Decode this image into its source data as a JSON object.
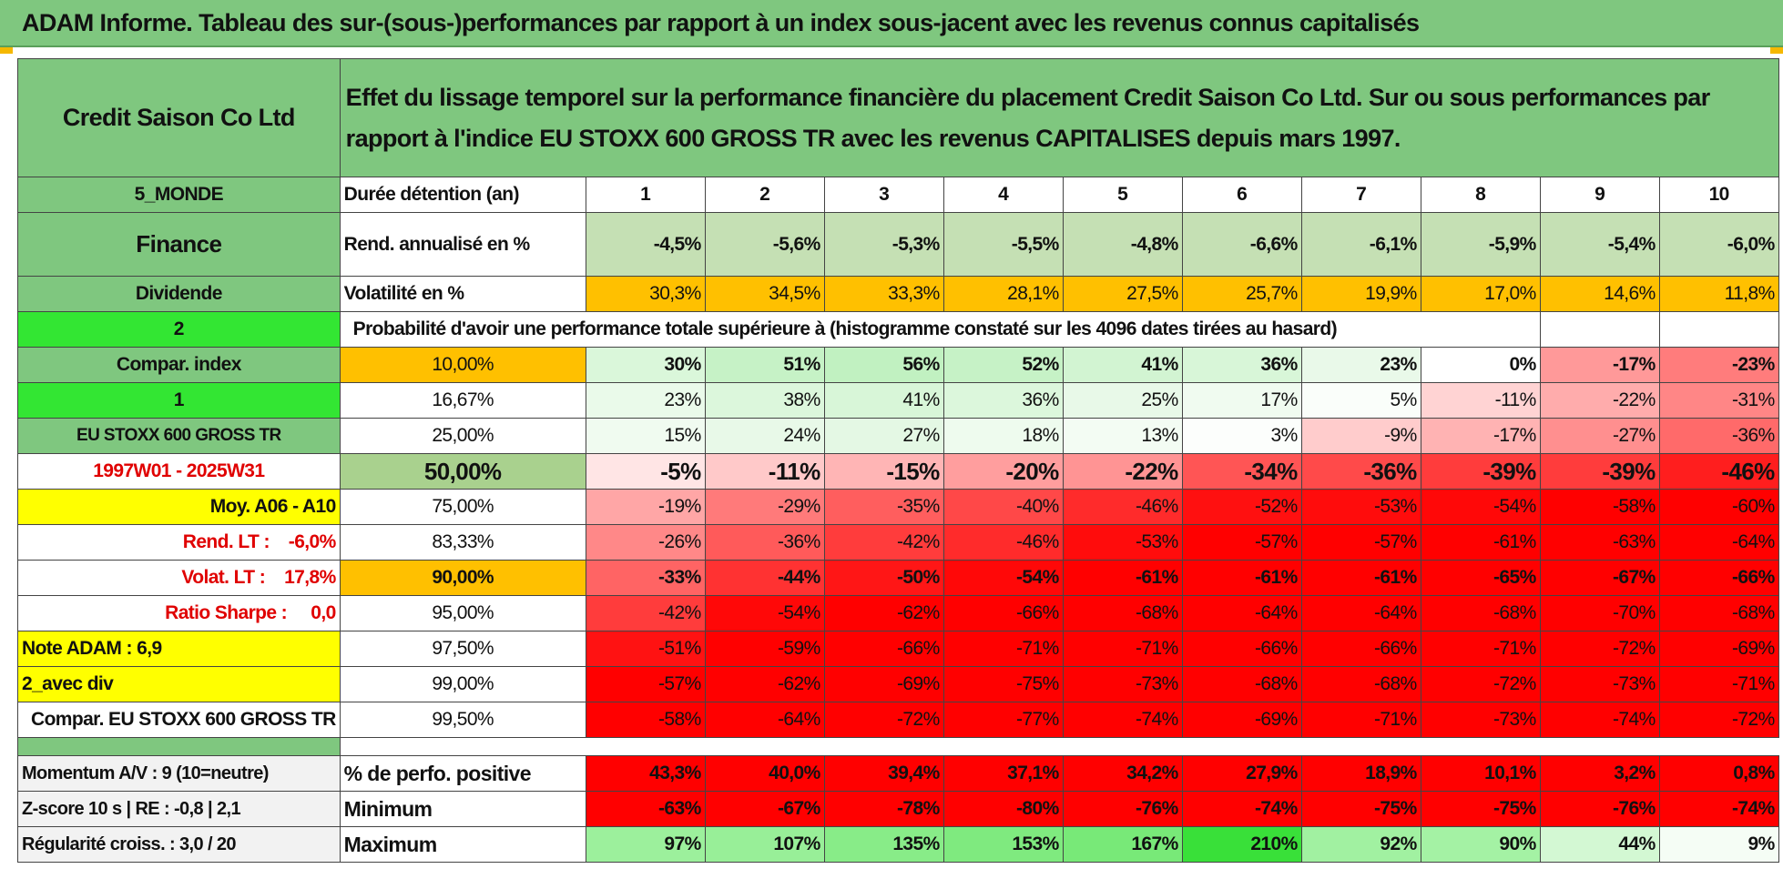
{
  "title": "ADAM Informe. Tableau des sur-(sous-)performances par rapport à un index sous-jacent avec les revenus connus capitalisés",
  "header": {
    "company": "Credit Saison Co Ltd",
    "description": "Effet du lissage temporel sur la performance financière du placement Credit Saison Co Ltd. Sur ou sous performances par rapport à l'indice EU STOXX 600 GROSS TR avec les revenus CAPITALISES depuis mars 1997."
  },
  "left": {
    "region": "5_MONDE",
    "sector": "Finance",
    "type": "Dividende",
    "code2": "2",
    "compar_label": "Compar. index",
    "code1": "1",
    "index_name": "EU STOXX 600 GROSS TR",
    "period": "1997W01 - 2025W31",
    "moy": "Moy. A06 - A10",
    "rend_lt": "Rend. LT :    -6,0%",
    "volat_lt": "Volat. LT :    17,8%",
    "sharpe": "Ratio Sharpe :     0,0",
    "note": "Note ADAM : 6,9",
    "avec_div": "2_avec div",
    "compar_full": "Compar. EU STOXX 600 GROSS TR"
  },
  "row_labels": {
    "duration": "Durée détention (an)",
    "rend": "Rend. annualisé en %",
    "volat": "Volatilité en %",
    "prob": "Probabilité d'avoir une performance totale supérieure à (histogramme constaté sur les 4096 dates tirées au hasard)"
  },
  "years": [
    "1",
    "2",
    "3",
    "4",
    "5",
    "6",
    "7",
    "8",
    "9",
    "10"
  ],
  "rend": [
    "-4,5%",
    "-5,6%",
    "-5,3%",
    "-5,5%",
    "-4,8%",
    "-6,6%",
    "-6,1%",
    "-5,9%",
    "-5,4%",
    "-6,0%"
  ],
  "volat": [
    "30,3%",
    "34,5%",
    "33,3%",
    "28,1%",
    "27,5%",
    "25,7%",
    "19,9%",
    "17,0%",
    "14,6%",
    "11,8%"
  ],
  "percentile_rows": [
    {
      "p": "10,00%",
      "values": [
        "30%",
        "51%",
        "56%",
        "52%",
        "41%",
        "36%",
        "23%",
        "0%",
        "-17%",
        "-23%"
      ],
      "colors": [
        "#daf7da",
        "#c6f2c6",
        "#c1f1c1",
        "#c6f2c6",
        "#d2f4d2",
        "#d8f6d8",
        "#e9f9e9",
        "#ffffff",
        "#ff9999",
        "#ff7c7c"
      ]
    },
    {
      "p": "16,67%",
      "values": [
        "23%",
        "38%",
        "41%",
        "36%",
        "25%",
        "17%",
        "5%",
        "-11%",
        "-22%",
        "-31%"
      ],
      "colors": [
        "#eafaea",
        "#dcf7dc",
        "#d8f6d8",
        "#dcf7dc",
        "#e8f9e8",
        "#f0fbf0",
        "#fafefa",
        "#ffd3d3",
        "#ffacac",
        "#ff8686"
      ]
    },
    {
      "p": "25,00%",
      "values": [
        "15%",
        "24%",
        "27%",
        "18%",
        "13%",
        "3%",
        "-9%",
        "-17%",
        "-27%",
        "-36%"
      ],
      "colors": [
        "#f0fbf0",
        "#e8f9e8",
        "#e4f8e4",
        "#eefbee",
        "#f3fcf3",
        "#fcfefc",
        "#ffcccc",
        "#ffb3b3",
        "#ff8f8f",
        "#ff6a6a"
      ]
    },
    {
      "p": "50,00%",
      "values": [
        "-5%",
        "-11%",
        "-15%",
        "-20%",
        "-22%",
        "-34%",
        "-36%",
        "-39%",
        "-39%",
        "-46%"
      ],
      "colors": [
        "#ffe5e5",
        "#ffc9c9",
        "#ffb5b5",
        "#ff9e9e",
        "#ff9494",
        "#ff5555",
        "#ff4a4a",
        "#ff3c3c",
        "#ff3c3c",
        "#ff1e1e"
      ]
    },
    {
      "p": "75,00%",
      "values": [
        "-19%",
        "-29%",
        "-35%",
        "-40%",
        "-46%",
        "-52%",
        "-53%",
        "-54%",
        "-58%",
        "-60%"
      ],
      "colors": [
        "#ffa6a6",
        "#ff7a7a",
        "#ff5e5e",
        "#ff4848",
        "#ff2b2b",
        "#ff1010",
        "#ff0c0c",
        "#ff0808",
        "#ff0000",
        "#ff0000"
      ]
    },
    {
      "p": "83,33%",
      "values": [
        "-26%",
        "-36%",
        "-42%",
        "-46%",
        "-53%",
        "-57%",
        "-57%",
        "-61%",
        "-63%",
        "-64%"
      ],
      "colors": [
        "#ff8888",
        "#ff5a5a",
        "#ff3c3c",
        "#ff2b2b",
        "#ff0c0c",
        "#ff0000",
        "#ff0000",
        "#ff0000",
        "#ff0000",
        "#ff0000"
      ]
    },
    {
      "p": "90,00%",
      "values": [
        "-33%",
        "-44%",
        "-50%",
        "-54%",
        "-61%",
        "-61%",
        "-61%",
        "-65%",
        "-67%",
        "-66%"
      ],
      "colors": [
        "#ff6464",
        "#ff3232",
        "#ff1616",
        "#ff0808",
        "#ff0000",
        "#ff0000",
        "#ff0000",
        "#ff0000",
        "#ff0000",
        "#ff0000"
      ]
    },
    {
      "p": "95,00%",
      "values": [
        "-42%",
        "-54%",
        "-62%",
        "-66%",
        "-68%",
        "-64%",
        "-64%",
        "-68%",
        "-70%",
        "-68%"
      ],
      "colors": [
        "#ff3c3c",
        "#ff0808",
        "#ff0000",
        "#ff0000",
        "#ff0000",
        "#ff0000",
        "#ff0000",
        "#ff0000",
        "#ff0000",
        "#ff0000"
      ]
    },
    {
      "p": "97,50%",
      "values": [
        "-51%",
        "-59%",
        "-66%",
        "-71%",
        "-71%",
        "-66%",
        "-66%",
        "-71%",
        "-72%",
        "-69%"
      ],
      "colors": [
        "#ff1212",
        "#ff0000",
        "#ff0000",
        "#ff0000",
        "#ff0000",
        "#ff0000",
        "#ff0000",
        "#ff0000",
        "#ff0000",
        "#ff0000"
      ]
    },
    {
      "p": "99,00%",
      "values": [
        "-57%",
        "-62%",
        "-69%",
        "-75%",
        "-73%",
        "-68%",
        "-68%",
        "-72%",
        "-73%",
        "-71%"
      ],
      "colors": [
        "#ff0000",
        "#ff0000",
        "#ff0000",
        "#ff0000",
        "#ff0000",
        "#ff0000",
        "#ff0000",
        "#ff0000",
        "#ff0000",
        "#ff0000"
      ]
    },
    {
      "p": "99,50%",
      "values": [
        "-58%",
        "-64%",
        "-72%",
        "-77%",
        "-74%",
        "-69%",
        "-71%",
        "-73%",
        "-74%",
        "-72%"
      ],
      "colors": [
        "#ff0000",
        "#ff0000",
        "#ff0000",
        "#ff0000",
        "#ff0000",
        "#ff0000",
        "#ff0000",
        "#ff0000",
        "#ff0000",
        "#ff0000"
      ]
    }
  ],
  "stats": [
    {
      "left": "Momentum A/V : 9 (10=neutre)",
      "label": "% de perfo. positive",
      "values": [
        "43,3%",
        "40,0%",
        "39,4%",
        "37,1%",
        "34,2%",
        "27,9%",
        "18,9%",
        "10,1%",
        "3,2%",
        "0,8%"
      ],
      "colors": [
        "#ff0000",
        "#ff0000",
        "#ff0000",
        "#ff0000",
        "#ff0000",
        "#ff0000",
        "#ff0000",
        "#ff0000",
        "#ff0000",
        "#ff0000"
      ]
    },
    {
      "left": "Z-score 10 s | RE : -0,8 | 2,1",
      "label": "Minimum",
      "values": [
        "-63%",
        "-67%",
        "-78%",
        "-80%",
        "-76%",
        "-74%",
        "-75%",
        "-75%",
        "-76%",
        "-74%"
      ],
      "colors": [
        "#ff0000",
        "#ff0000",
        "#ff0000",
        "#ff0000",
        "#ff0000",
        "#ff0000",
        "#ff0000",
        "#ff0000",
        "#ff0000",
        "#ff0000"
      ]
    },
    {
      "left": "Régularité croiss. : 3,0 / 20",
      "label": "Maximum",
      "values": [
        "97%",
        "107%",
        "135%",
        "153%",
        "167%",
        "210%",
        "92%",
        "90%",
        "44%",
        "9%"
      ],
      "colors": [
        "#9cf09c",
        "#98ef98",
        "#88ec88",
        "#7fea7f",
        "#78e978",
        "#39e039",
        "#a1f1a1",
        "#a4f2a4",
        "#d3f8d3",
        "#f5fdf5"
      ]
    }
  ]
}
